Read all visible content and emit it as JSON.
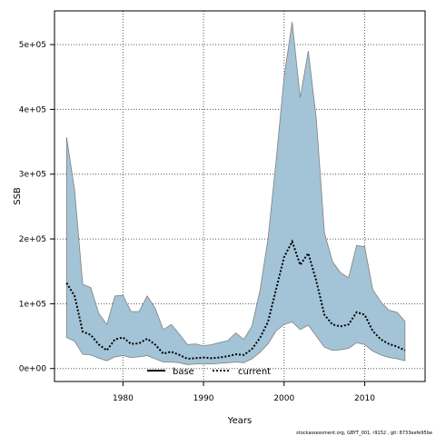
{
  "chart_data": {
    "type": "line",
    "title": "",
    "xlabel": "Years",
    "ylabel": "SSB",
    "xlim": [
      1971.5,
      2017.5
    ],
    "ylim": [
      -20000,
      552000
    ],
    "x_ticks": [
      1980,
      1990,
      2000,
      2010
    ],
    "y_ticks": [
      0,
      100000,
      200000,
      300000,
      400000,
      500000
    ],
    "y_tick_labels": [
      "0e+00",
      "1e+05",
      "2e+05",
      "3e+05",
      "4e+05",
      "5e+05"
    ],
    "grid": true,
    "legend": {
      "placement": "bottom",
      "entries": [
        "base",
        "current"
      ]
    },
    "footnote": "stockassessment.org, GBYT_001, r9152 , git: 8733eefe95be",
    "colors": {
      "band_fill": "#a3c4d6",
      "band_stroke": "#808080",
      "base": "#000000",
      "current": "#000000",
      "grid": "#555555"
    },
    "x": [
      1973,
      1974,
      1975,
      1976,
      1977,
      1978,
      1979,
      1980,
      1981,
      1982,
      1983,
      1984,
      1985,
      1986,
      1987,
      1988,
      1989,
      1990,
      1991,
      1992,
      1993,
      1994,
      1995,
      1996,
      1997,
      1998,
      1999,
      2000,
      2001,
      2002,
      2003,
      2004,
      2005,
      2006,
      2007,
      2008,
      2009,
      2010,
      2011,
      2012,
      2013,
      2014,
      2015
    ],
    "series": [
      {
        "name": "current",
        "style": "dotted",
        "values": [
          132000,
          112000,
          57000,
          52000,
          37000,
          28000,
          45000,
          48000,
          38000,
          39000,
          46000,
          37000,
          23000,
          26000,
          21000,
          15000,
          16000,
          17000,
          16000,
          17000,
          19000,
          22000,
          21000,
          30000,
          47000,
          72000,
          122000,
          172000,
          196000,
          160000,
          178000,
          135000,
          83000,
          68000,
          65000,
          68000,
          87000,
          83000,
          58000,
          45000,
          38000,
          34000,
          28000
        ]
      }
    ],
    "confidence_band": {
      "lower": [
        48000,
        42000,
        22000,
        21000,
        16000,
        12000,
        18000,
        20000,
        17000,
        18000,
        20000,
        15000,
        10000,
        10000,
        9000,
        6000,
        7000,
        7000,
        7000,
        8000,
        9000,
        10000,
        9000,
        15000,
        25000,
        38000,
        58000,
        68000,
        72000,
        60000,
        67000,
        50000,
        33000,
        28000,
        29000,
        31000,
        40000,
        37000,
        27000,
        21000,
        17000,
        15000,
        12000
      ],
      "upper": [
        357000,
        275000,
        130000,
        125000,
        85000,
        68000,
        112000,
        113000,
        88000,
        88000,
        112000,
        93000,
        60000,
        68000,
        53000,
        37000,
        38000,
        35000,
        37000,
        40000,
        43000,
        55000,
        45000,
        65000,
        120000,
        200000,
        320000,
        450000,
        535000,
        418000,
        490000,
        385000,
        210000,
        165000,
        148000,
        140000,
        190000,
        188000,
        122000,
        103000,
        90000,
        87000,
        73000
      ]
    }
  }
}
